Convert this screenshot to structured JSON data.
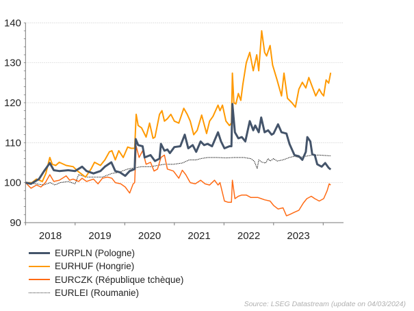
{
  "chart_data": {
    "type": "line",
    "title": "",
    "xlabel": "",
    "ylabel": "",
    "xlim": [
      2018.0,
      2024.2
    ],
    "ylim": [
      90,
      140
    ],
    "yticks": [
      90,
      100,
      110,
      120,
      130,
      140
    ],
    "xtick_labels": [
      "2018",
      "2019",
      "2020",
      "2021",
      "2022",
      "2023"
    ],
    "grid": "horizontal dotted",
    "legend_position": "bottom-left",
    "series": [
      {
        "name": "EURPLN (Pologne)",
        "color": "#44546A",
        "style": "solid-thick",
        "x": [
          2018.0,
          2018.11,
          2018.27,
          2018.38,
          2018.49,
          2018.57,
          2018.68,
          2018.86,
          2019.0,
          2019.14,
          2019.23,
          2019.37,
          2019.51,
          2019.6,
          2019.73,
          2019.81,
          2019.9,
          2020.01,
          2020.1,
          2020.2,
          2020.22,
          2020.27,
          2020.36,
          2020.4,
          2020.52,
          2020.61,
          2020.7,
          2020.73,
          2020.8,
          2020.86,
          2020.91,
          2021.0,
          2021.12,
          2021.21,
          2021.28,
          2021.37,
          2021.44,
          2021.53,
          2021.6,
          2021.67,
          2021.76,
          2021.88,
          2021.94,
          2022.01,
          2022.11,
          2022.15,
          2022.17,
          2022.22,
          2022.29,
          2022.36,
          2022.43,
          2022.52,
          2022.59,
          2022.63,
          2022.7,
          2022.75,
          2022.82,
          2022.89,
          2022.96,
          2023.0,
          2023.09,
          2023.16,
          2023.26,
          2023.32,
          2023.42,
          2023.51,
          2023.58,
          2023.65,
          2023.68,
          2023.74,
          2023.78,
          2023.83,
          2023.88,
          2023.97,
          2024.04,
          2024.11,
          2024.15
        ],
        "y": [
          100.0,
          99.7,
          100.9,
          103.0,
          104.9,
          103.1,
          102.9,
          103.1,
          102.9,
          104.0,
          102.9,
          102.3,
          102.9,
          104.0,
          105.1,
          102.9,
          102.6,
          101.7,
          102.9,
          103.4,
          110.9,
          109.4,
          109.1,
          106.3,
          106.9,
          105.4,
          106.0,
          109.7,
          108.0,
          108.3,
          107.4,
          108.9,
          109.1,
          112.0,
          108.6,
          109.4,
          107.7,
          110.3,
          109.4,
          109.7,
          109.1,
          112.6,
          110.3,
          108.6,
          109.1,
          109.1,
          119.7,
          112.6,
          111.1,
          111.4,
          110.3,
          115.4,
          113.1,
          114.3,
          112.6,
          116.3,
          112.6,
          113.1,
          112.0,
          112.3,
          114.6,
          112.6,
          112.3,
          109.7,
          106.9,
          106.6,
          105.7,
          107.7,
          111.4,
          110.3,
          107.1,
          106.9,
          104.6,
          104.0,
          104.9,
          103.7,
          103.3
        ]
      },
      {
        "name": "EURHUF (Hongrie)",
        "color": "#FF9900",
        "style": "solid",
        "x": [
          2018.0,
          2018.13,
          2018.22,
          2018.34,
          2018.41,
          2018.49,
          2018.54,
          2018.61,
          2018.68,
          2018.82,
          2018.96,
          2019.05,
          2019.21,
          2019.32,
          2019.39,
          2019.51,
          2019.6,
          2019.69,
          2019.74,
          2019.81,
          2019.88,
          2019.97,
          2020.06,
          2020.13,
          2020.2,
          2020.23,
          2020.27,
          2020.34,
          2020.43,
          2020.5,
          2020.57,
          2020.61,
          2020.7,
          2020.75,
          2020.8,
          2020.86,
          2020.93,
          2021.0,
          2021.09,
          2021.19,
          2021.26,
          2021.32,
          2021.39,
          2021.46,
          2021.55,
          2021.65,
          2021.71,
          2021.78,
          2021.88,
          2021.92,
          2021.97,
          2022.04,
          2022.11,
          2022.15,
          2022.17,
          2022.2,
          2022.24,
          2022.29,
          2022.34,
          2022.38,
          2022.45,
          2022.52,
          2022.59,
          2022.66,
          2022.7,
          2022.76,
          2022.82,
          2022.86,
          2022.93,
          2022.98,
          2023.07,
          2023.16,
          2023.21,
          2023.28,
          2023.37,
          2023.44,
          2023.51,
          2023.58,
          2023.65,
          2023.71,
          2023.78,
          2023.85,
          2023.92,
          2023.97,
          2024.01,
          2024.06,
          2024.11,
          2024.15
        ],
        "y": [
          100.0,
          100.0,
          100.9,
          100.3,
          102.3,
          106.3,
          104.6,
          104.3,
          105.1,
          104.3,
          104.0,
          102.9,
          101.4,
          103.4,
          105.1,
          104.3,
          105.7,
          107.7,
          108.0,
          105.7,
          108.0,
          106.3,
          108.9,
          108.6,
          108.6,
          117.1,
          114.3,
          113.7,
          111.4,
          114.9,
          111.1,
          111.4,
          117.1,
          118.0,
          115.4,
          116.0,
          117.1,
          115.4,
          114.9,
          118.6,
          117.1,
          115.4,
          112.0,
          113.1,
          116.9,
          112.3,
          115.4,
          116.6,
          119.4,
          118.0,
          119.4,
          115.4,
          114.3,
          114.9,
          127.4,
          120.0,
          119.7,
          122.3,
          120.6,
          124.6,
          130.0,
          132.6,
          128.0,
          132.0,
          128.0,
          138.0,
          132.6,
          131.7,
          134.3,
          129.4,
          125.7,
          121.7,
          127.4,
          121.1,
          120.0,
          118.9,
          123.4,
          125.1,
          123.7,
          126.3,
          124.0,
          121.7,
          123.4,
          122.3,
          121.7,
          125.7,
          124.9,
          127.5
        ]
      },
      {
        "name": "EURCZK (République tchèque)",
        "color": "#FF6A13",
        "style": "solid-thin",
        "x": [
          2018.0,
          2018.11,
          2018.22,
          2018.31,
          2018.4,
          2018.49,
          2018.57,
          2018.68,
          2018.82,
          2018.89,
          2018.96,
          2019.07,
          2019.14,
          2019.23,
          2019.37,
          2019.46,
          2019.55,
          2019.65,
          2019.74,
          2019.81,
          2019.92,
          2020.01,
          2020.1,
          2020.17,
          2020.2,
          2020.23,
          2020.29,
          2020.36,
          2020.43,
          2020.52,
          2020.59,
          2020.66,
          2020.73,
          2020.8,
          2020.86,
          2020.98,
          2021.09,
          2021.16,
          2021.23,
          2021.32,
          2021.42,
          2021.53,
          2021.62,
          2021.71,
          2021.81,
          2021.88,
          2021.92,
          2022.01,
          2022.08,
          2022.15,
          2022.17,
          2022.22,
          2022.29,
          2022.36,
          2022.45,
          2022.54,
          2022.68,
          2022.82,
          2022.93,
          2023.0,
          2023.09,
          2023.19,
          2023.26,
          2023.32,
          2023.42,
          2023.51,
          2023.6,
          2023.67,
          2023.76,
          2023.83,
          2023.92,
          2024.01,
          2024.08,
          2024.12,
          2024.15
        ],
        "y": [
          100.0,
          98.6,
          99.4,
          98.9,
          100.0,
          102.0,
          100.3,
          100.6,
          101.7,
          100.6,
          100.9,
          100.3,
          101.1,
          100.3,
          100.9,
          99.7,
          101.1,
          101.4,
          101.1,
          100.0,
          99.7,
          98.9,
          97.4,
          99.7,
          100.0,
          109.1,
          106.3,
          108.0,
          104.6,
          105.1,
          102.9,
          103.4,
          106.3,
          106.9,
          103.4,
          102.9,
          101.1,
          103.1,
          102.0,
          100.0,
          99.7,
          100.6,
          99.7,
          99.4,
          100.6,
          99.4,
          100.0,
          95.4,
          95.1,
          95.1,
          100.6,
          96.0,
          96.6,
          96.9,
          96.9,
          96.3,
          96.3,
          95.7,
          95.4,
          94.3,
          93.4,
          93.7,
          91.7,
          92.0,
          92.6,
          93.1,
          94.9,
          96.0,
          96.6,
          96.0,
          95.4,
          96.0,
          98.0,
          99.7,
          99.4
        ]
      },
      {
        "name": "EURLEI (Roumanie)",
        "color": "#000000",
        "style": "dotted",
        "x": [
          2018.0,
          2018.22,
          2018.36,
          2018.5,
          2018.59,
          2018.7,
          2018.86,
          2019.0,
          2019.07,
          2019.23,
          2019.42,
          2019.55,
          2019.74,
          2019.88,
          2020.06,
          2020.2,
          2020.34,
          2020.52,
          2020.66,
          2020.8,
          2020.98,
          2021.16,
          2021.3,
          2021.44,
          2021.53,
          2021.67,
          2021.85,
          2022.04,
          2022.22,
          2022.4,
          2022.54,
          2022.61,
          2022.67,
          2022.7,
          2022.77,
          2022.84,
          2022.89,
          2022.93,
          2023.0,
          2023.07,
          2023.19,
          2023.32,
          2023.42,
          2023.51,
          2023.65,
          2023.78,
          2023.92,
          2024.15
        ],
        "y": [
          100.0,
          99.7,
          99.4,
          100.0,
          99.4,
          100.0,
          100.3,
          99.7,
          102.0,
          101.4,
          101.4,
          101.4,
          102.3,
          102.6,
          103.4,
          103.7,
          104.0,
          104.0,
          104.3,
          104.6,
          104.6,
          104.9,
          105.7,
          105.7,
          106.0,
          106.3,
          106.3,
          106.2,
          106.3,
          106.3,
          106.0,
          105.4,
          103.5,
          105.7,
          105.1,
          104.9,
          106.0,
          105.4,
          106.0,
          105.4,
          105.7,
          106.3,
          106.6,
          106.3,
          106.6,
          106.9,
          106.9,
          106.7
        ]
      }
    ]
  },
  "source": "Source: LSEG Datastream (update on 04/03/2024)"
}
